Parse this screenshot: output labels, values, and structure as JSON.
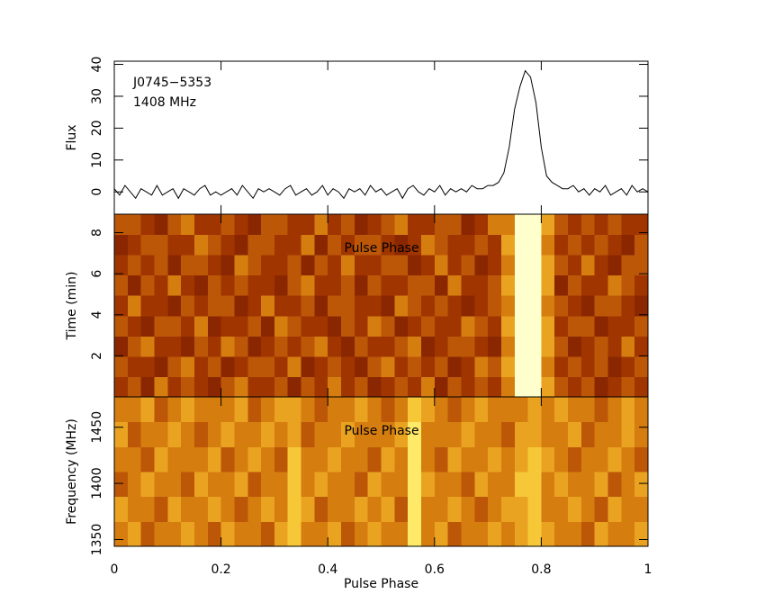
{
  "chart_data": [
    {
      "type": "line",
      "ylabel": "Flux",
      "annotations": [
        "J0745−5353",
        "1408 MHz"
      ],
      "xlim": [
        0,
        1
      ],
      "ylim": [
        -7,
        41
      ],
      "yticks": [
        0,
        10,
        20,
        30,
        40
      ],
      "color": "#000000",
      "x": [
        0,
        0.01,
        0.02,
        0.03,
        0.04,
        0.05,
        0.06,
        0.07,
        0.08,
        0.09,
        0.1,
        0.11,
        0.12,
        0.13,
        0.14,
        0.15,
        0.16,
        0.17,
        0.18,
        0.19,
        0.2,
        0.21,
        0.22,
        0.23,
        0.24,
        0.25,
        0.26,
        0.27,
        0.28,
        0.29,
        0.3,
        0.31,
        0.32,
        0.33,
        0.34,
        0.35,
        0.36,
        0.37,
        0.38,
        0.39,
        0.4,
        0.41,
        0.42,
        0.43,
        0.44,
        0.45,
        0.46,
        0.47,
        0.48,
        0.49,
        0.5,
        0.51,
        0.52,
        0.53,
        0.54,
        0.55,
        0.56,
        0.57,
        0.58,
        0.59,
        0.6,
        0.61,
        0.62,
        0.63,
        0.64,
        0.65,
        0.66,
        0.67,
        0.68,
        0.69,
        0.7,
        0.71,
        0.72,
        0.73,
        0.74,
        0.75,
        0.76,
        0.77,
        0.78,
        0.79,
        0.8,
        0.81,
        0.82,
        0.83,
        0.84,
        0.85,
        0.86,
        0.87,
        0.88,
        0.89,
        0.9,
        0.91,
        0.92,
        0.93,
        0.94,
        0.95,
        0.96,
        0.97,
        0.98,
        0.99,
        1
      ],
      "values": [
        1,
        -1,
        2,
        0,
        -2,
        1,
        0,
        -1,
        2,
        -1,
        0,
        1,
        -2,
        1,
        0,
        -1,
        1,
        2,
        -1,
        0,
        -1,
        0,
        1,
        -1,
        2,
        0,
        -2,
        1,
        0,
        1,
        0,
        -1,
        1,
        2,
        -1,
        0,
        1,
        -1,
        0,
        2,
        -1,
        1,
        0,
        -2,
        1,
        0,
        1,
        -1,
        2,
        0,
        1,
        -1,
        0,
        1,
        -2,
        1,
        2,
        0,
        -1,
        1,
        0,
        2,
        -1,
        1,
        0,
        1,
        0,
        2,
        1,
        1,
        2,
        2,
        3,
        6,
        14,
        26,
        33,
        38,
        36,
        28,
        14,
        5,
        3,
        2,
        1,
        1,
        2,
        0,
        1,
        -1,
        1,
        0,
        2,
        -1,
        0,
        1,
        -1,
        2,
        0,
        1,
        0
      ]
    },
    {
      "type": "heatmap",
      "ylabel": "Time (min)",
      "annotation": "Pulse Phase",
      "xlim": [
        0,
        1
      ],
      "ylim": [
        0,
        8.9
      ],
      "yticks": [
        2,
        4,
        6,
        8
      ],
      "zlim": [
        0,
        9
      ],
      "values": [
        [
          3,
          4,
          2,
          5,
          3,
          4,
          3,
          2,
          4,
          5,
          3,
          3,
          4,
          2,
          4,
          3,
          5,
          3,
          4,
          2,
          3,
          4,
          3,
          5,
          2,
          4,
          3,
          4,
          3,
          5,
          9,
          9,
          6,
          4,
          3,
          4,
          2,
          3,
          4,
          3
        ],
        [
          4,
          3,
          3,
          2,
          4,
          5,
          3,
          4,
          2,
          3,
          4,
          4,
          3,
          5,
          2,
          3,
          4,
          3,
          2,
          4,
          5,
          3,
          4,
          3,
          4,
          2,
          3,
          5,
          4,
          6,
          9,
          9,
          5,
          3,
          4,
          3,
          4,
          2,
          3,
          4
        ],
        [
          2,
          4,
          5,
          3,
          3,
          2,
          4,
          3,
          5,
          4,
          2,
          3,
          4,
          3,
          4,
          5,
          3,
          2,
          4,
          3,
          3,
          4,
          5,
          2,
          3,
          4,
          4,
          3,
          2,
          5,
          9,
          9,
          6,
          4,
          2,
          3,
          4,
          3,
          5,
          3
        ],
        [
          4,
          3,
          2,
          4,
          4,
          3,
          5,
          2,
          3,
          3,
          4,
          2,
          5,
          4,
          3,
          3,
          2,
          4,
          3,
          5,
          4,
          2,
          3,
          4,
          3,
          3,
          5,
          4,
          3,
          6,
          9,
          9,
          6,
          3,
          4,
          4,
          2,
          3,
          3,
          4
        ],
        [
          3,
          5,
          3,
          3,
          2,
          4,
          3,
          4,
          4,
          2,
          3,
          5,
          3,
          3,
          4,
          2,
          4,
          4,
          3,
          3,
          2,
          5,
          4,
          3,
          4,
          3,
          2,
          3,
          4,
          5,
          9,
          9,
          5,
          4,
          3,
          2,
          4,
          4,
          3,
          2
        ],
        [
          4,
          2,
          4,
          3,
          5,
          3,
          2,
          4,
          3,
          4,
          3,
          3,
          2,
          4,
          5,
          3,
          3,
          4,
          2,
          4,
          3,
          3,
          4,
          4,
          2,
          5,
          3,
          3,
          4,
          6,
          9,
          9,
          6,
          2,
          4,
          3,
          3,
          5,
          4,
          3
        ],
        [
          3,
          4,
          3,
          4,
          2,
          4,
          4,
          3,
          2,
          5,
          4,
          3,
          3,
          4,
          2,
          4,
          3,
          5,
          3,
          3,
          4,
          4,
          2,
          3,
          5,
          3,
          4,
          2,
          3,
          5,
          9,
          9,
          6,
          4,
          3,
          5,
          3,
          2,
          4,
          4
        ],
        [
          2,
          3,
          4,
          4,
          3,
          3,
          5,
          4,
          3,
          2,
          4,
          4,
          3,
          3,
          5,
          2,
          4,
          3,
          4,
          4,
          3,
          2,
          3,
          5,
          4,
          3,
          3,
          4,
          3,
          6,
          9,
          9,
          5,
          3,
          4,
          3,
          4,
          3,
          2,
          4
        ],
        [
          4,
          4,
          3,
          2,
          4,
          5,
          3,
          3,
          4,
          3,
          2,
          4,
          4,
          3,
          3,
          5,
          3,
          4,
          2,
          3,
          4,
          5,
          3,
          3,
          4,
          4,
          2,
          3,
          5,
          5,
          9,
          9,
          6,
          4,
          3,
          4,
          3,
          4,
          3,
          3
        ]
      ]
    },
    {
      "type": "heatmap",
      "ylabel": "Frequency (MHz)",
      "annotation": "Pulse Phase",
      "xlabel": "Pulse Phase",
      "xlim": [
        0,
        1
      ],
      "xticks": [
        0,
        0.2,
        0.4,
        0.6,
        0.8,
        1
      ],
      "ylim": [
        1344,
        1477
      ],
      "yticks": [
        1350,
        1400,
        1450
      ],
      "zlim": [
        0,
        9
      ],
      "values": [
        [
          5,
          6,
          4,
          5,
          5,
          6,
          5,
          4,
          6,
          5,
          5,
          4,
          6,
          7,
          5,
          5,
          6,
          4,
          5,
          6,
          5,
          5,
          8,
          5,
          6,
          4,
          5,
          5,
          6,
          5,
          6,
          7,
          6,
          5,
          5,
          4,
          6,
          5,
          5,
          6
        ],
        [
          6,
          5,
          5,
          4,
          6,
          5,
          5,
          6,
          5,
          4,
          5,
          6,
          5,
          7,
          6,
          4,
          5,
          5,
          6,
          5,
          6,
          4,
          8,
          5,
          5,
          6,
          5,
          4,
          5,
          6,
          6,
          7,
          5,
          5,
          6,
          5,
          4,
          6,
          5,
          5
        ],
        [
          4,
          5,
          6,
          5,
          5,
          4,
          6,
          5,
          5,
          6,
          4,
          5,
          5,
          7,
          5,
          6,
          5,
          5,
          4,
          6,
          5,
          5,
          8,
          6,
          5,
          5,
          4,
          6,
          5,
          5,
          7,
          7,
          5,
          6,
          5,
          5,
          6,
          4,
          5,
          6
        ],
        [
          5,
          5,
          4,
          6,
          5,
          5,
          5,
          6,
          4,
          5,
          6,
          5,
          4,
          7,
          5,
          5,
          6,
          5,
          5,
          4,
          6,
          5,
          8,
          5,
          4,
          6,
          5,
          5,
          6,
          5,
          6,
          7,
          6,
          5,
          4,
          5,
          5,
          6,
          5,
          4
        ],
        [
          6,
          4,
          5,
          5,
          6,
          5,
          4,
          5,
          6,
          5,
          5,
          6,
          5,
          6,
          4,
          5,
          5,
          6,
          5,
          5,
          5,
          6,
          8,
          5,
          5,
          5,
          6,
          5,
          5,
          4,
          6,
          6,
          5,
          5,
          6,
          4,
          5,
          5,
          6,
          5
        ],
        [
          5,
          5,
          6,
          4,
          5,
          6,
          5,
          5,
          5,
          6,
          4,
          5,
          6,
          6,
          5,
          4,
          5,
          5,
          6,
          5,
          4,
          5,
          7,
          6,
          5,
          4,
          5,
          6,
          5,
          5,
          5,
          6,
          5,
          6,
          5,
          5,
          4,
          5,
          6,
          5
        ]
      ]
    }
  ]
}
